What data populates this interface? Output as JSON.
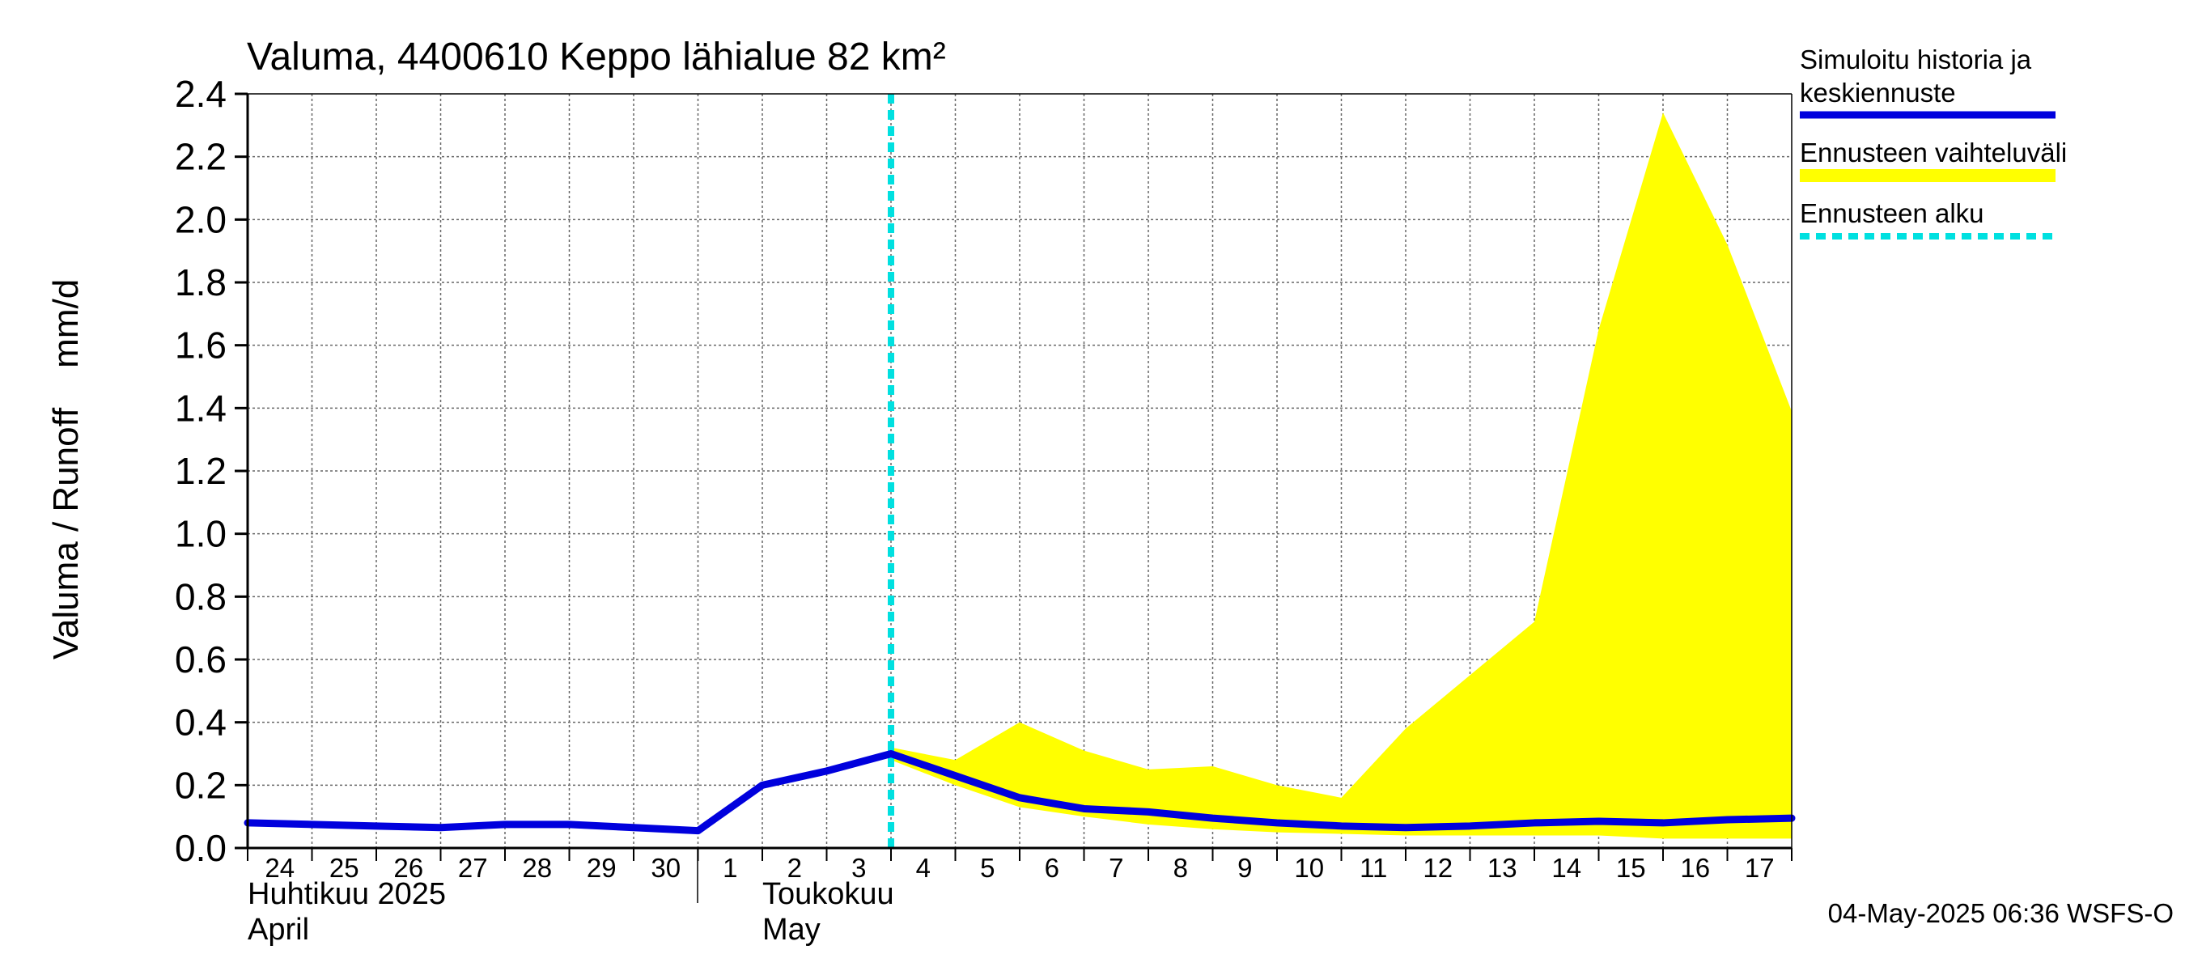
{
  "chart_data": {
    "type": "area",
    "title": "Valuma, 4400610 Keppo lähialue 82 km²",
    "ylabel": "Valuma / Runoff    mm/d",
    "ylim": [
      0,
      2.4
    ],
    "yticks": [
      "0.0",
      "0.2",
      "0.4",
      "0.6",
      "0.8",
      "1.0",
      "1.2",
      "1.4",
      "1.6",
      "1.8",
      "2.0",
      "2.2",
      "2.4"
    ],
    "x_range": [
      "2025-04-24",
      "2025-05-18"
    ],
    "day_labels": [
      "24",
      "25",
      "26",
      "27",
      "28",
      "29",
      "30",
      "1",
      "2",
      "3",
      "4",
      "5",
      "6",
      "7",
      "8",
      "9",
      "10",
      "11",
      "12",
      "13",
      "14",
      "15",
      "16",
      "17"
    ],
    "month_labels": [
      {
        "line1": "Huhtikuu  2025",
        "line2": "April",
        "date": "2025-04-24"
      },
      {
        "line1": "Toukokuu",
        "line2": "May",
        "date": "2025-05-02"
      }
    ],
    "forecast_start": "2025-05-04",
    "series": [
      {
        "name": "Simuloitu historia ja keskiennuste",
        "color": "#0000dd",
        "points": [
          [
            "2025-04-24",
            0.08
          ],
          [
            "2025-04-25",
            0.075
          ],
          [
            "2025-04-26",
            0.07
          ],
          [
            "2025-04-27",
            0.065
          ],
          [
            "2025-04-28",
            0.075
          ],
          [
            "2025-04-29",
            0.075
          ],
          [
            "2025-04-30",
            0.065
          ],
          [
            "2025-05-01",
            0.055
          ],
          [
            "2025-05-02",
            0.2
          ],
          [
            "2025-05-03",
            0.245
          ],
          [
            "2025-05-04",
            0.3
          ],
          [
            "2025-05-05",
            0.23
          ],
          [
            "2025-05-06",
            0.16
          ],
          [
            "2025-05-07",
            0.125
          ],
          [
            "2025-05-08",
            0.115
          ],
          [
            "2025-05-09",
            0.095
          ],
          [
            "2025-05-10",
            0.08
          ],
          [
            "2025-05-11",
            0.07
          ],
          [
            "2025-05-12",
            0.065
          ],
          [
            "2025-05-13",
            0.07
          ],
          [
            "2025-05-14",
            0.08
          ],
          [
            "2025-05-15",
            0.085
          ],
          [
            "2025-05-16",
            0.08
          ],
          [
            "2025-05-17",
            0.09
          ],
          [
            "2025-05-18",
            0.095
          ]
        ]
      },
      {
        "name": "Ennusteen vaihteluväli",
        "color": "#ffff00",
        "upper": [
          [
            "2025-05-04",
            0.32
          ],
          [
            "2025-05-05",
            0.28
          ],
          [
            "2025-05-06",
            0.4
          ],
          [
            "2025-05-07",
            0.31
          ],
          [
            "2025-05-08",
            0.25
          ],
          [
            "2025-05-09",
            0.26
          ],
          [
            "2025-05-10",
            0.2
          ],
          [
            "2025-05-11",
            0.16
          ],
          [
            "2025-05-12",
            0.38
          ],
          [
            "2025-05-13",
            0.55
          ],
          [
            "2025-05-14",
            0.72
          ],
          [
            "2025-05-15",
            1.65
          ],
          [
            "2025-05-16",
            2.34
          ],
          [
            "2025-05-17",
            1.92
          ],
          [
            "2025-05-18",
            1.39
          ]
        ],
        "lower": [
          [
            "2025-05-04",
            0.28
          ],
          [
            "2025-05-05",
            0.2
          ],
          [
            "2025-05-06",
            0.13
          ],
          [
            "2025-05-07",
            0.1
          ],
          [
            "2025-05-08",
            0.075
          ],
          [
            "2025-05-09",
            0.06
          ],
          [
            "2025-05-10",
            0.05
          ],
          [
            "2025-05-11",
            0.045
          ],
          [
            "2025-05-12",
            0.04
          ],
          [
            "2025-05-13",
            0.04
          ],
          [
            "2025-05-14",
            0.04
          ],
          [
            "2025-05-15",
            0.04
          ],
          [
            "2025-05-16",
            0.03
          ],
          [
            "2025-05-17",
            0.03
          ],
          [
            "2025-05-18",
            0.03
          ]
        ]
      },
      {
        "name": "Ennusteen alku",
        "color": "#00e0e0"
      }
    ],
    "grid": true,
    "legend_position": "right",
    "footer": "04-May-2025 06:36 WSFS-O"
  }
}
